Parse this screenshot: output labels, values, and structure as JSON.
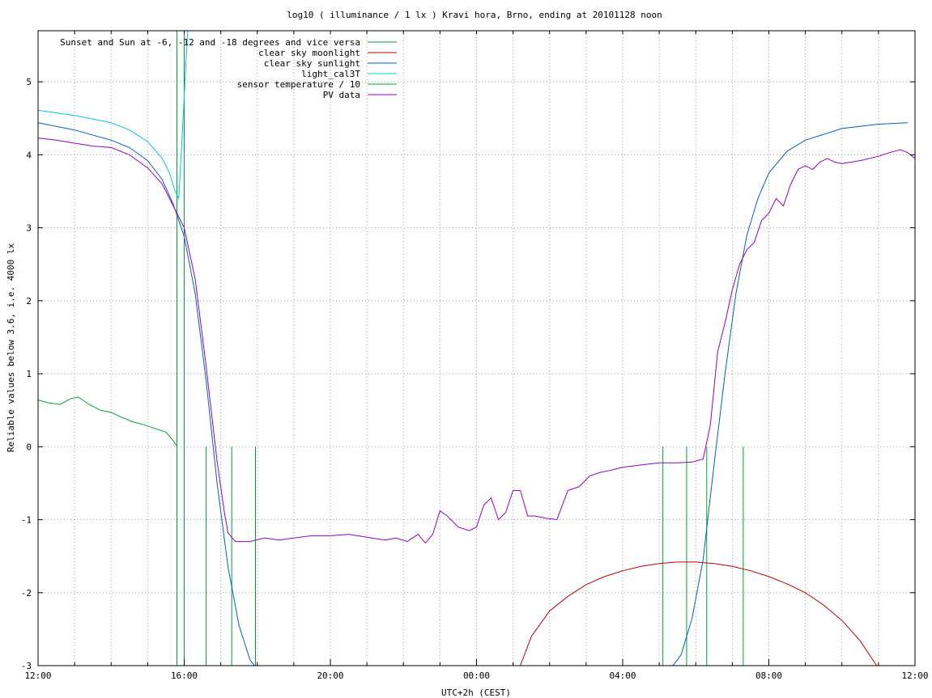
{
  "chart_data": {
    "type": "line",
    "title": "log10 ( illuminance / 1 lx ) Kravi hora, Brno, ending at 20101128 noon",
    "xlabel": "UTC+2h (CEST)",
    "ylabel": "Reliable values below 3.6, i.e. 4000 lx",
    "xlim": [
      12,
      36
    ],
    "ylim": [
      -3,
      5.7
    ],
    "x_ticks": [
      {
        "value": 12,
        "label": "12:00"
      },
      {
        "value": 16,
        "label": "16:00"
      },
      {
        "value": 20,
        "label": "20:00"
      },
      {
        "value": 24,
        "label": "00:00"
      },
      {
        "value": 28,
        "label": "04:00"
      },
      {
        "value": 32,
        "label": "08:00"
      },
      {
        "value": 36,
        "label": "12:00"
      }
    ],
    "y_ticks": [
      -3,
      -2,
      -1,
      0,
      1,
      2,
      3,
      4,
      5
    ],
    "grid": true,
    "legend_position": "top-left",
    "series": [
      {
        "name": "Sunset and Sun at -6, -12 and -18 degrees and vice versa",
        "color": "#00a030",
        "kind": "events",
        "x": [
          15.8,
          16.0,
          16.6,
          17.3,
          17.95,
          29.1,
          29.75,
          30.3,
          31.3
        ],
        "y": [
          5.7,
          5.7,
          0,
          0,
          0,
          0,
          0,
          0,
          0
        ],
        "values": [
          [
            15.8,
            5.7
          ],
          [
            16.0,
            5.7
          ],
          [
            16.6,
            0
          ],
          [
            17.3,
            0
          ],
          [
            17.95,
            0
          ],
          [
            29.1,
            0
          ],
          [
            29.75,
            0
          ],
          [
            30.3,
            0
          ],
          [
            31.3,
            0
          ]
        ]
      },
      {
        "name": "clear sky moonlight",
        "color": "#c00000",
        "x": [
          25.2,
          25.5,
          26.0,
          26.5,
          27.0,
          27.5,
          28.0,
          28.5,
          29.0,
          29.5,
          30.0,
          30.5,
          31.0,
          31.5,
          32.0,
          32.5,
          33.0,
          33.5,
          34.0,
          34.5,
          34.95
        ],
        "y": [
          -3.0,
          -2.6,
          -2.25,
          -2.05,
          -1.89,
          -1.78,
          -1.7,
          -1.64,
          -1.6,
          -1.58,
          -1.58,
          -1.6,
          -1.64,
          -1.7,
          -1.78,
          -1.88,
          -2.0,
          -2.17,
          -2.38,
          -2.66,
          -3.0
        ],
        "values": [
          [
            25.2,
            -3.0
          ],
          [
            25.5,
            -2.6
          ],
          [
            26.0,
            -2.25
          ],
          [
            26.5,
            -2.05
          ],
          [
            27.0,
            -1.89
          ],
          [
            27.5,
            -1.78
          ],
          [
            28.0,
            -1.7
          ],
          [
            28.5,
            -1.64
          ],
          [
            29.0,
            -1.6
          ],
          [
            29.5,
            -1.58
          ],
          [
            30.0,
            -1.58
          ],
          [
            30.5,
            -1.6
          ],
          [
            31.0,
            -1.64
          ],
          [
            31.5,
            -1.7
          ],
          [
            32.0,
            -1.78
          ],
          [
            32.5,
            -1.88
          ],
          [
            33.0,
            -2.0
          ],
          [
            33.5,
            -2.17
          ],
          [
            34.0,
            -2.38
          ],
          [
            34.5,
            -2.66
          ],
          [
            34.95,
            -3.0
          ]
        ]
      },
      {
        "name": "clear sky sunlight",
        "color": "#0060c0",
        "x": [
          12.0,
          13.0,
          14.0,
          14.5,
          15.0,
          15.4,
          15.7,
          16.0,
          16.3,
          16.6,
          16.9,
          17.2,
          17.5,
          17.8,
          18.0,
          29.3,
          29.6,
          29.9,
          30.2,
          30.5,
          30.8,
          31.1,
          31.4,
          31.7,
          32.0,
          32.5,
          33.0,
          34.0,
          35.0,
          35.8
        ],
        "y": [
          4.44,
          4.34,
          4.2,
          4.1,
          3.92,
          3.66,
          3.32,
          2.88,
          2.1,
          0.9,
          -0.5,
          -1.65,
          -2.45,
          -2.92,
          -3.05,
          -3.05,
          -2.85,
          -2.35,
          -1.55,
          -0.25,
          1.0,
          2.1,
          2.9,
          3.4,
          3.75,
          4.05,
          4.2,
          4.36,
          4.42,
          4.44
        ],
        "values": [
          [
            12.0,
            4.44
          ],
          [
            13.0,
            4.34
          ],
          [
            14.0,
            4.2
          ],
          [
            14.5,
            4.1
          ],
          [
            15.0,
            3.92
          ],
          [
            15.4,
            3.66
          ],
          [
            15.7,
            3.32
          ],
          [
            16.0,
            2.88
          ],
          [
            16.3,
            2.1
          ],
          [
            16.6,
            0.9
          ],
          [
            16.9,
            -0.5
          ],
          [
            17.2,
            -1.65
          ],
          [
            17.5,
            -2.45
          ],
          [
            17.8,
            -2.92
          ],
          [
            18.0,
            -3.05
          ],
          [
            29.3,
            -3.05
          ],
          [
            29.6,
            -2.85
          ],
          [
            29.9,
            -2.35
          ],
          [
            30.2,
            -1.55
          ],
          [
            30.5,
            -0.25
          ],
          [
            30.8,
            1.0
          ],
          [
            31.1,
            2.1
          ],
          [
            31.4,
            2.9
          ],
          [
            31.7,
            3.4
          ],
          [
            32.0,
            3.75
          ],
          [
            32.5,
            4.05
          ],
          [
            33.0,
            4.2
          ],
          [
            34.0,
            4.36
          ],
          [
            35.0,
            4.42
          ],
          [
            35.8,
            4.44
          ]
        ]
      },
      {
        "name": "light_cal3T",
        "color": "#00c8d8",
        "x": [
          12.0,
          13.0,
          14.0,
          14.5,
          15.0,
          15.4,
          15.6,
          15.75,
          15.85,
          15.95,
          16.05,
          16.1
        ],
        "y": [
          4.61,
          4.54,
          4.44,
          4.34,
          4.18,
          3.95,
          3.75,
          3.5,
          3.4,
          4.3,
          5.3,
          5.7
        ],
        "values": [
          [
            12.0,
            4.61
          ],
          [
            13.0,
            4.54
          ],
          [
            14.0,
            4.44
          ],
          [
            14.5,
            4.34
          ],
          [
            15.0,
            4.18
          ],
          [
            15.4,
            3.95
          ],
          [
            15.6,
            3.75
          ],
          [
            15.75,
            3.5
          ],
          [
            15.85,
            3.4
          ],
          [
            15.95,
            4.3
          ],
          [
            16.05,
            5.3
          ],
          [
            16.1,
            5.7
          ]
        ]
      },
      {
        "name": "sensor temperature / 10",
        "color": "#00a030",
        "x": [
          12.0,
          12.3,
          12.6,
          12.9,
          13.1,
          13.4,
          13.7,
          14.0,
          14.3,
          14.6,
          14.9,
          15.2,
          15.5,
          15.7,
          15.8
        ],
        "y": [
          0.64,
          0.6,
          0.58,
          0.66,
          0.68,
          0.58,
          0.5,
          0.47,
          0.4,
          0.34,
          0.3,
          0.25,
          0.2,
          0.08,
          0.01
        ],
        "values": [
          [
            12.0,
            0.64
          ],
          [
            12.3,
            0.6
          ],
          [
            12.6,
            0.58
          ],
          [
            12.9,
            0.66
          ],
          [
            13.1,
            0.68
          ],
          [
            13.4,
            0.58
          ],
          [
            13.7,
            0.5
          ],
          [
            14.0,
            0.47
          ],
          [
            14.3,
            0.4
          ],
          [
            14.6,
            0.34
          ],
          [
            14.9,
            0.3
          ],
          [
            15.2,
            0.25
          ],
          [
            15.5,
            0.2
          ],
          [
            15.7,
            0.08
          ],
          [
            15.8,
            0.01
          ]
        ]
      },
      {
        "name": "PV data",
        "color": "#9000c8",
        "x": [
          12.0,
          12.5,
          13.0,
          13.5,
          14.0,
          14.5,
          15.0,
          15.4,
          15.8,
          16.0,
          16.3,
          16.6,
          16.9,
          17.1,
          17.2,
          17.4,
          17.8,
          18.2,
          18.6,
          19.0,
          19.5,
          20.0,
          20.5,
          21.0,
          21.5,
          21.8,
          22.1,
          22.4,
          22.6,
          22.8,
          23.0,
          23.2,
          23.5,
          23.8,
          24.0,
          24.2,
          24.4,
          24.6,
          24.8,
          25.0,
          25.2,
          25.4,
          25.6,
          25.9,
          26.2,
          26.5,
          26.8,
          27.1,
          27.4,
          27.7,
          28.0,
          28.5,
          29.0,
          29.5,
          29.9,
          30.2,
          30.4,
          30.6,
          30.8,
          31.0,
          31.2,
          31.4,
          31.6,
          31.8,
          32.0,
          32.2,
          32.4,
          32.6,
          32.8,
          33.0,
          33.2,
          33.4,
          33.6,
          33.8,
          34.0,
          34.5,
          35.0,
          35.3,
          35.6,
          35.8,
          36.0
        ],
        "y": [
          4.23,
          4.2,
          4.16,
          4.12,
          4.1,
          4.0,
          3.82,
          3.6,
          3.2,
          3.0,
          2.3,
          1.1,
          -0.2,
          -0.9,
          -1.18,
          -1.3,
          -1.3,
          -1.25,
          -1.28,
          -1.25,
          -1.22,
          -1.22,
          -1.2,
          -1.24,
          -1.28,
          -1.25,
          -1.3,
          -1.2,
          -1.32,
          -1.2,
          -0.88,
          -0.95,
          -1.1,
          -1.15,
          -1.1,
          -0.8,
          -0.7,
          -1.0,
          -0.9,
          -0.6,
          -0.6,
          -0.95,
          -0.95,
          -0.98,
          -1.0,
          -0.6,
          -0.55,
          -0.4,
          -0.35,
          -0.32,
          -0.28,
          -0.25,
          -0.22,
          -0.22,
          -0.21,
          -0.17,
          0.3,
          1.3,
          1.7,
          2.15,
          2.5,
          2.7,
          2.8,
          3.1,
          3.2,
          3.4,
          3.3,
          3.6,
          3.8,
          3.85,
          3.8,
          3.9,
          3.95,
          3.9,
          3.88,
          3.92,
          3.98,
          4.03,
          4.07,
          4.03,
          3.95
        ],
        "values": [
          [
            12.0,
            4.23
          ],
          [
            12.5,
            4.2
          ],
          [
            13.0,
            4.16
          ],
          [
            13.5,
            4.12
          ],
          [
            14.0,
            4.1
          ],
          [
            14.5,
            4.0
          ],
          [
            15.0,
            3.82
          ],
          [
            15.4,
            3.6
          ],
          [
            15.8,
            3.2
          ],
          [
            16.0,
            3.0
          ],
          [
            16.3,
            2.3
          ],
          [
            16.6,
            1.1
          ],
          [
            16.9,
            -0.2
          ],
          [
            17.1,
            -0.9
          ],
          [
            17.2,
            -1.18
          ],
          [
            17.4,
            -1.3
          ],
          [
            17.8,
            -1.3
          ],
          [
            18.2,
            -1.25
          ],
          [
            18.6,
            -1.28
          ],
          [
            19.0,
            -1.25
          ],
          [
            19.5,
            -1.22
          ],
          [
            20.0,
            -1.22
          ],
          [
            20.5,
            -1.2
          ],
          [
            21.0,
            -1.24
          ],
          [
            21.5,
            -1.28
          ],
          [
            21.8,
            -1.25
          ],
          [
            22.1,
            -1.3
          ],
          [
            22.4,
            -1.2
          ],
          [
            22.6,
            -1.32
          ],
          [
            22.8,
            -1.2
          ],
          [
            23.0,
            -0.88
          ],
          [
            23.2,
            -0.95
          ],
          [
            23.5,
            -1.1
          ],
          [
            23.8,
            -1.15
          ],
          [
            24.0,
            -1.1
          ],
          [
            24.2,
            -0.8
          ],
          [
            24.4,
            -0.7
          ],
          [
            24.6,
            -1.0
          ],
          [
            24.8,
            -0.9
          ],
          [
            25.0,
            -0.6
          ],
          [
            25.2,
            -0.6
          ],
          [
            25.4,
            -0.95
          ],
          [
            25.6,
            -0.95
          ],
          [
            25.9,
            -0.98
          ],
          [
            26.2,
            -1.0
          ],
          [
            26.5,
            -0.6
          ],
          [
            26.8,
            -0.55
          ],
          [
            27.1,
            -0.4
          ],
          [
            27.4,
            -0.35
          ],
          [
            27.7,
            -0.32
          ],
          [
            28.0,
            -0.28
          ],
          [
            28.5,
            -0.25
          ],
          [
            29.0,
            -0.22
          ],
          [
            29.5,
            -0.22
          ],
          [
            29.9,
            -0.21
          ],
          [
            30.2,
            -0.17
          ],
          [
            30.4,
            0.3
          ],
          [
            30.6,
            1.3
          ],
          [
            30.8,
            1.7
          ],
          [
            31.0,
            2.15
          ],
          [
            31.2,
            2.5
          ],
          [
            31.4,
            2.7
          ],
          [
            31.6,
            2.8
          ],
          [
            31.8,
            3.1
          ],
          [
            32.0,
            3.2
          ],
          [
            32.2,
            3.4
          ],
          [
            32.4,
            3.3
          ],
          [
            32.6,
            3.6
          ],
          [
            32.8,
            3.8
          ],
          [
            33.0,
            3.85
          ],
          [
            33.2,
            3.8
          ],
          [
            33.4,
            3.9
          ],
          [
            33.6,
            3.95
          ],
          [
            33.8,
            3.9
          ],
          [
            34.0,
            3.88
          ],
          [
            34.5,
            3.92
          ],
          [
            35.0,
            3.98
          ],
          [
            35.3,
            4.03
          ],
          [
            35.6,
            4.07
          ],
          [
            35.8,
            4.03
          ],
          [
            36.0,
            3.95
          ]
        ]
      }
    ]
  }
}
